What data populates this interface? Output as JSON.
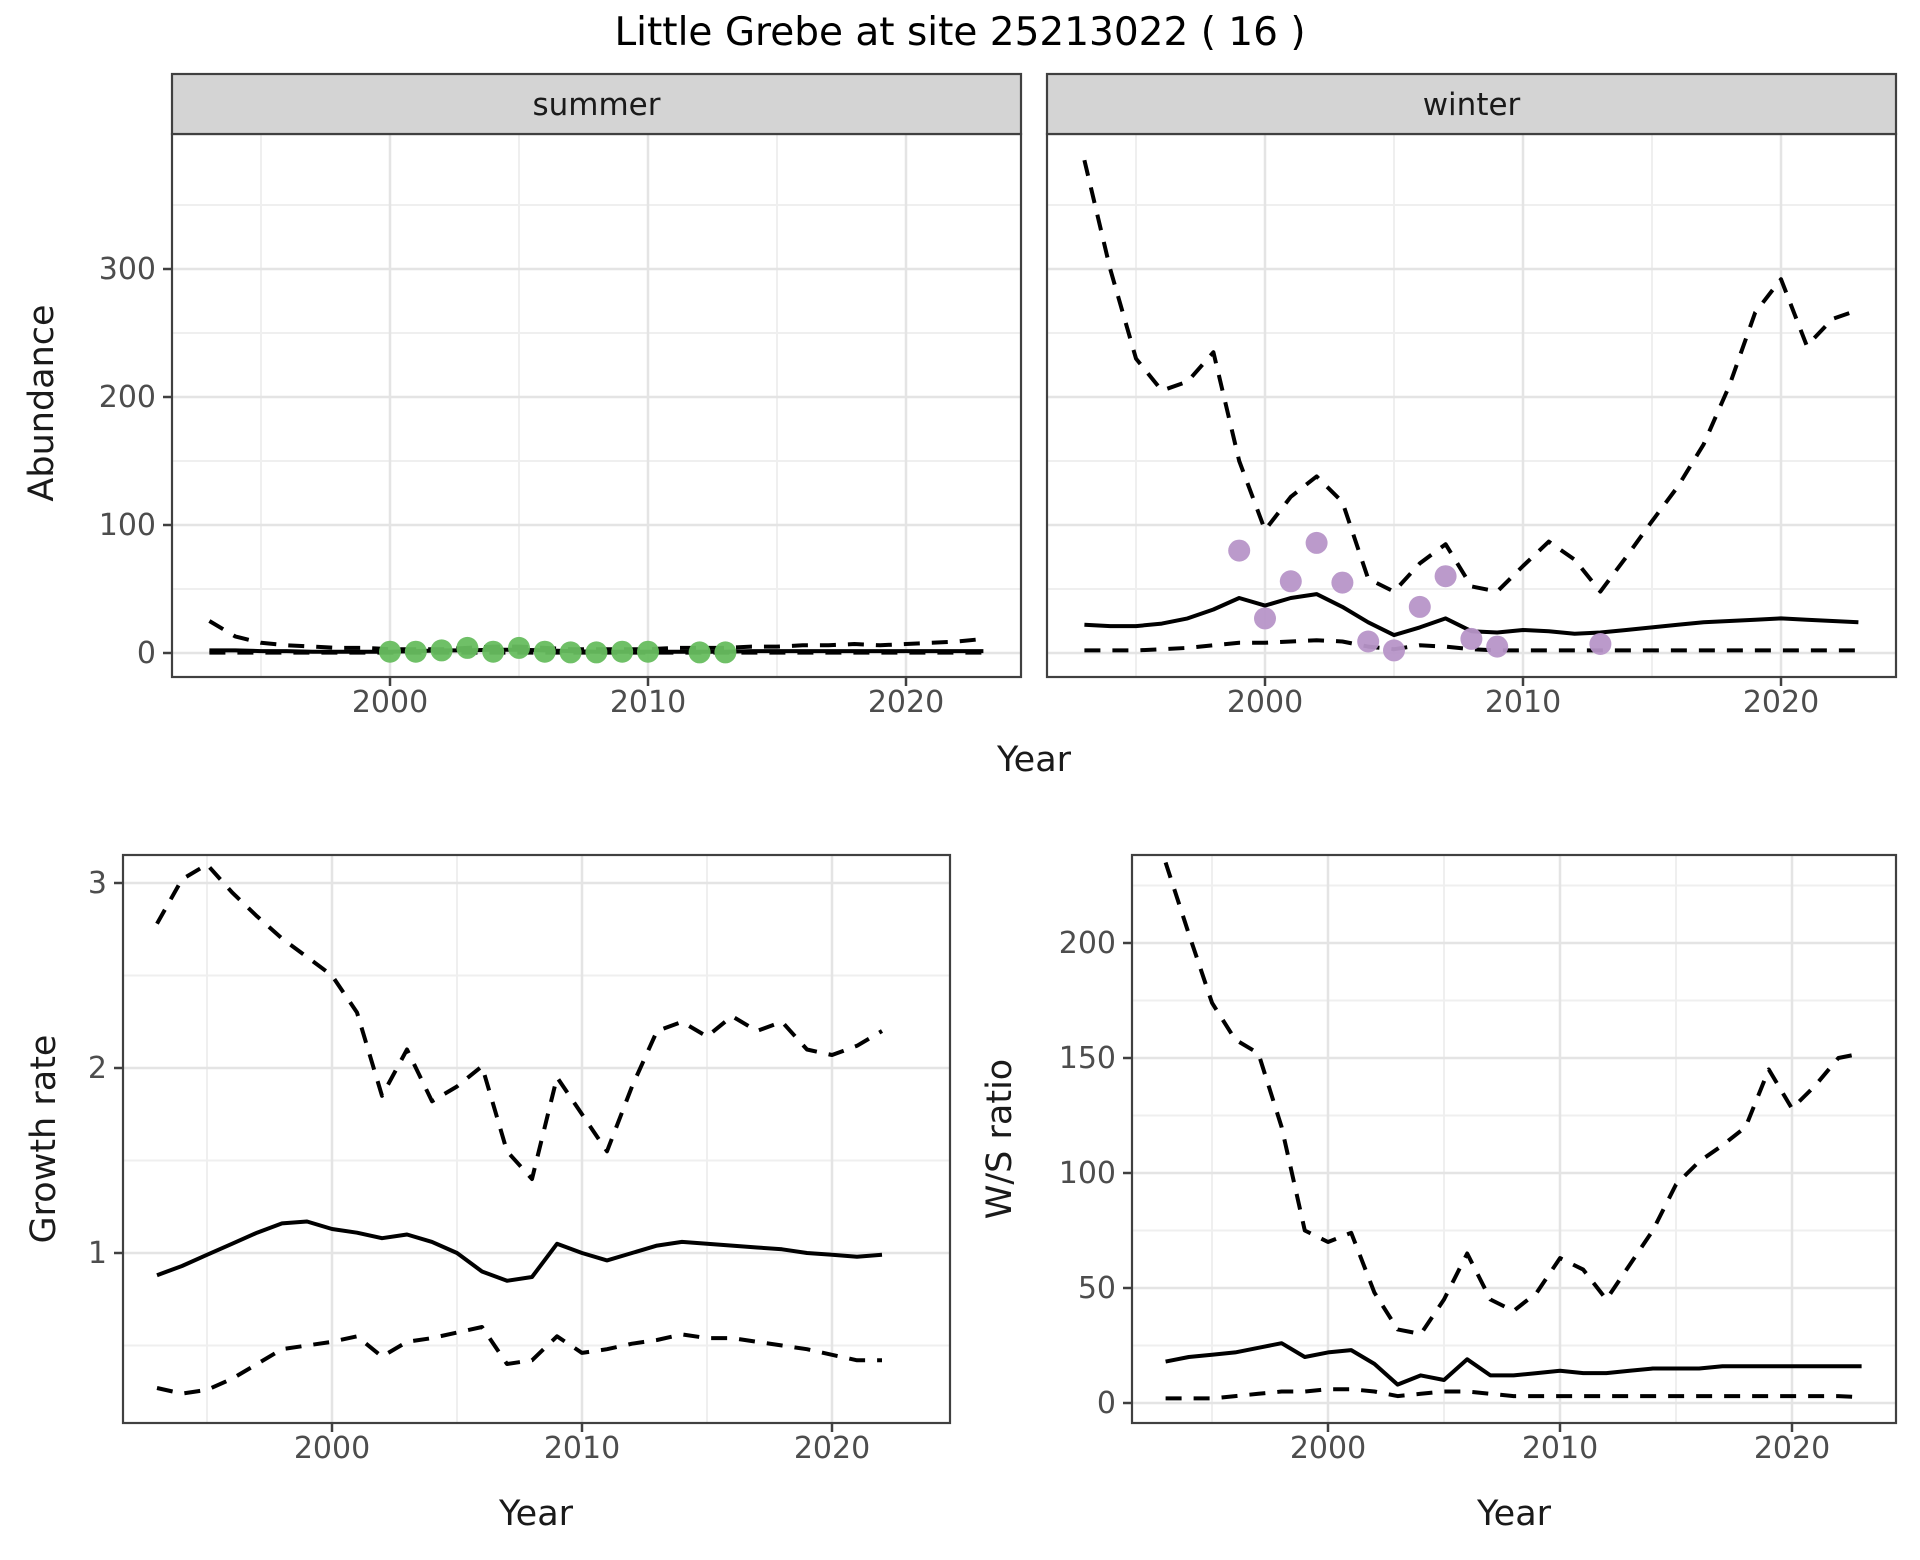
{
  "title": "Little Grebe at site 25213022 ( 16 )",
  "axes": {
    "abundance_label": "Abundance",
    "year_label": "Year",
    "growth_label": "Growth rate",
    "ws_label": "W/S ratio"
  },
  "facets": {
    "summer": "summer",
    "winter": "winter"
  },
  "colors": {
    "observation_summer": "#67bd5f",
    "observation_winter": "#b795c8",
    "line": "#000000",
    "grid_major": "#e4e4e4",
    "grid_minor": "#efefef",
    "strip_bg": "#d4d4d4",
    "panel_border": "#404040",
    "axis_text": "#4d4d4d"
  },
  "chart_data": [
    {
      "type": "line",
      "facet_label": "summer",
      "ylabel": "Abundance",
      "xlabel": "Year",
      "x": [
        1993,
        1994,
        1995,
        1996,
        1997,
        1998,
        1999,
        2000,
        2001,
        2002,
        2003,
        2004,
        2005,
        2006,
        2007,
        2008,
        2009,
        2010,
        2011,
        2012,
        2013,
        2014,
        2015,
        2016,
        2017,
        2018,
        2019,
        2020,
        2021,
        2022,
        2023
      ],
      "series": [
        {
          "name": "fit",
          "style": "solid",
          "values": [
            2,
            2,
            1.5,
            1.5,
            1,
            1,
            1,
            1,
            1.5,
            2,
            2,
            2.5,
            2.5,
            2,
            1.5,
            1,
            1,
            1,
            1,
            1,
            1,
            1.5,
            1.5,
            1.5,
            1.5,
            1.5,
            1.5,
            1.5,
            1.5,
            1.5,
            1.5
          ]
        },
        {
          "name": "upper_ci",
          "style": "dashed",
          "values": [
            25,
            13,
            8,
            6,
            5,
            4,
            4,
            3,
            3,
            3,
            4,
            5,
            5,
            4,
            3,
            3,
            3,
            3,
            4,
            4,
            4,
            5,
            5,
            6,
            6,
            7,
            6,
            7,
            8,
            9,
            11
          ]
        },
        {
          "name": "lower_ci",
          "style": "dashed",
          "values": [
            0.3,
            0.3,
            0.3,
            0.3,
            0.3,
            0.3,
            0.3,
            0.3,
            0.3,
            0.3,
            0.3,
            0.3,
            0.3,
            0.3,
            0.3,
            0.3,
            0.3,
            0.3,
            0.3,
            0.3,
            0.3,
            0.3,
            0.3,
            0.3,
            0.3,
            0.3,
            0.3,
            0.3,
            0.3,
            0.3,
            0.3
          ]
        }
      ],
      "points": {
        "name": "observed",
        "xy": [
          [
            2000,
            1
          ],
          [
            2001,
            1
          ],
          [
            2002,
            2
          ],
          [
            2003,
            4
          ],
          [
            2004,
            1
          ],
          [
            2005,
            4
          ],
          [
            2006,
            1
          ],
          [
            2007,
            0.5
          ],
          [
            2008,
            0.5
          ],
          [
            2009,
            1
          ],
          [
            2010,
            1
          ],
          [
            2012,
            0.5
          ],
          [
            2013,
            0.5
          ]
        ]
      },
      "xticks": [
        2000,
        2010,
        2020
      ],
      "yticks": [
        0,
        100,
        200,
        300
      ],
      "ylim": [
        -18,
        405
      ],
      "grid": true,
      "legend": "none"
    },
    {
      "type": "line",
      "facet_label": "winter",
      "ylabel": "Abundance",
      "xlabel": "Year",
      "x": [
        1993,
        1994,
        1995,
        1996,
        1997,
        1998,
        1999,
        2000,
        2001,
        2002,
        2003,
        2004,
        2005,
        2006,
        2007,
        2008,
        2009,
        2010,
        2011,
        2012,
        2013,
        2014,
        2015,
        2016,
        2017,
        2018,
        2019,
        2020,
        2021,
        2022,
        2023
      ],
      "series": [
        {
          "name": "fit",
          "style": "solid",
          "values": [
            22,
            21,
            21,
            23,
            27,
            34,
            43,
            37,
            43,
            46,
            36,
            24,
            14,
            20,
            27,
            17,
            16,
            18,
            17,
            15,
            16,
            18,
            20,
            22,
            24,
            25,
            26,
            27,
            26,
            25,
            24
          ]
        },
        {
          "name": "upper_ci",
          "style": "dashed",
          "values": [
            385,
            300,
            230,
            205,
            212,
            235,
            150,
            96,
            122,
            138,
            118,
            58,
            48,
            70,
            85,
            52,
            48,
            68,
            87,
            73,
            48,
            75,
            103,
            130,
            163,
            209,
            266,
            292,
            240,
            261,
            268
          ]
        },
        {
          "name": "lower_ci",
          "style": "dashed",
          "values": [
            2,
            2,
            2,
            3,
            4,
            6,
            8,
            8,
            9,
            10,
            9,
            5,
            3,
            6,
            5,
            3,
            2,
            2,
            2,
            2,
            2,
            2,
            2,
            2,
            2,
            2,
            2,
            2,
            2,
            2,
            2
          ]
        }
      ],
      "points": {
        "name": "observed",
        "xy": [
          [
            1999,
            80
          ],
          [
            2000,
            27
          ],
          [
            2001,
            56
          ],
          [
            2002,
            86
          ],
          [
            2003,
            55
          ],
          [
            2004,
            9
          ],
          [
            2005,
            2
          ],
          [
            2006,
            36
          ],
          [
            2007,
            60
          ],
          [
            2008,
            11
          ],
          [
            2009,
            5
          ],
          [
            2013,
            7
          ]
        ]
      },
      "xticks": [
        2000,
        2010,
        2020
      ],
      "yticks": [
        0,
        100,
        200,
        300
      ],
      "ylim": [
        -18,
        405
      ],
      "grid": true,
      "legend": "none"
    },
    {
      "type": "line",
      "facet_label": "",
      "ylabel": "Growth rate",
      "xlabel": "Year",
      "x": [
        1993,
        1994,
        1995,
        1996,
        1997,
        1998,
        1999,
        2000,
        2001,
        2002,
        2003,
        2004,
        2005,
        2006,
        2007,
        2008,
        2009,
        2010,
        2011,
        2012,
        2013,
        2014,
        2015,
        2016,
        2017,
        2018,
        2019,
        2020,
        2021,
        2022
      ],
      "series": [
        {
          "name": "fit",
          "style": "solid",
          "values": [
            0.88,
            0.93,
            0.99,
            1.05,
            1.11,
            1.16,
            1.17,
            1.13,
            1.11,
            1.08,
            1.1,
            1.06,
            1.0,
            0.9,
            0.85,
            0.87,
            1.05,
            1.0,
            0.96,
            1.0,
            1.04,
            1.06,
            1.05,
            1.04,
            1.03,
            1.02,
            1.0,
            0.99,
            0.98,
            0.99
          ]
        },
        {
          "name": "upper_ci",
          "style": "dashed",
          "values": [
            2.78,
            3.02,
            3.1,
            2.95,
            2.82,
            2.7,
            2.6,
            2.5,
            2.3,
            1.85,
            2.1,
            1.82,
            1.9,
            2.01,
            1.55,
            1.4,
            1.95,
            1.75,
            1.55,
            1.9,
            2.2,
            2.25,
            2.17,
            2.28,
            2.2,
            2.25,
            2.1,
            2.07,
            2.12,
            2.2
          ]
        },
        {
          "name": "lower_ci",
          "style": "dashed",
          "values": [
            0.27,
            0.24,
            0.26,
            0.32,
            0.4,
            0.48,
            0.5,
            0.52,
            0.55,
            0.44,
            0.52,
            0.54,
            0.57,
            0.6,
            0.4,
            0.42,
            0.55,
            0.46,
            0.48,
            0.51,
            0.53,
            0.56,
            0.54,
            0.54,
            0.52,
            0.5,
            0.48,
            0.45,
            0.42,
            0.42
          ]
        }
      ],
      "points": {
        "name": "observed",
        "xy": []
      },
      "xticks": [
        2000,
        2010,
        2020
      ],
      "yticks": [
        1,
        2,
        3
      ],
      "ylim": [
        0.08,
        3.15
      ],
      "grid": true,
      "legend": "none"
    },
    {
      "type": "line",
      "facet_label": "",
      "ylabel": "W/S ratio",
      "xlabel": "Year",
      "x": [
        1993,
        1994,
        1995,
        1996,
        1997,
        1998,
        1999,
        2000,
        2001,
        2002,
        2003,
        2004,
        2005,
        2006,
        2007,
        2008,
        2009,
        2010,
        2011,
        2012,
        2013,
        2014,
        2015,
        2016,
        2017,
        2018,
        2019,
        2020,
        2021,
        2022,
        2023
      ],
      "series": [
        {
          "name": "fit",
          "style": "solid",
          "values": [
            18,
            20,
            21,
            22,
            24,
            26,
            20,
            22,
            23,
            17,
            8,
            12,
            10,
            19,
            12,
            12,
            13,
            14,
            13,
            13,
            14,
            15,
            15,
            15,
            16,
            16,
            16,
            16,
            16,
            16,
            16
          ]
        },
        {
          "name": "upper_ci",
          "style": "dashed",
          "values": [
            235,
            204,
            174,
            158,
            152,
            120,
            75,
            70,
            74,
            48,
            32,
            30,
            45,
            65,
            45,
            40,
            48,
            63,
            58,
            45,
            60,
            75,
            95,
            105,
            112,
            120,
            145,
            128,
            138,
            150,
            152
          ]
        },
        {
          "name": "lower_ci",
          "style": "dashed",
          "values": [
            2,
            2,
            2,
            3,
            4,
            5,
            5,
            6,
            6,
            5,
            3,
            4,
            5,
            5,
            4,
            3,
            3,
            3,
            3,
            3,
            3,
            3,
            3,
            3,
            3,
            3,
            3,
            3,
            3,
            3,
            2.5
          ]
        }
      ],
      "points": {
        "name": "observed",
        "xy": []
      },
      "xticks": [
        2000,
        2010,
        2020
      ],
      "yticks": [
        0,
        50,
        100,
        150,
        200
      ],
      "ylim": [
        -9,
        238
      ],
      "grid": true,
      "legend": "none"
    }
  ]
}
